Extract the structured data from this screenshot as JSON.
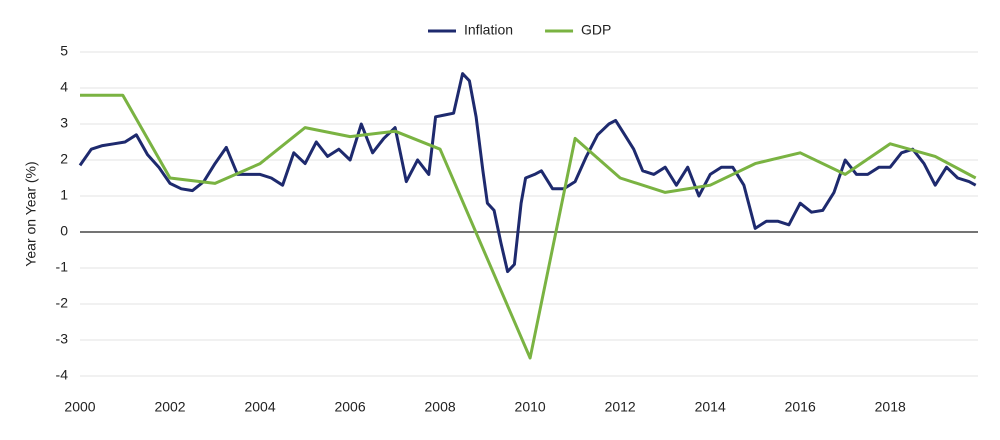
{
  "chart_data": {
    "type": "line",
    "y_label": "Year on Year (%)",
    "xlim": [
      2000,
      2019.95
    ],
    "xticks": [
      2000,
      2002,
      2004,
      2006,
      2008,
      2010,
      2012,
      2014,
      2016,
      2018
    ],
    "ylim": [
      -4,
      5
    ],
    "yticks": [
      -4,
      -3,
      -2,
      -1,
      0,
      1,
      2,
      3,
      4,
      5
    ],
    "grid": true,
    "legend": "top",
    "series": [
      {
        "name": "Inflation",
        "color": "#1e2a6e",
        "x": [
          2000,
          2000.25,
          2000.5,
          2000.75,
          2001,
          2001.25,
          2001.5,
          2001.75,
          2002,
          2002.25,
          2002.5,
          2002.75,
          2003,
          2003.25,
          2003.5,
          2003.75,
          2004,
          2004.25,
          2004.5,
          2004.75,
          2005,
          2005.25,
          2005.5,
          2005.75,
          2006,
          2006.25,
          2006.5,
          2006.75,
          2007,
          2007.25,
          2007.5,
          2007.75,
          2007.9,
          2008.1,
          2008.3,
          2008.5,
          2008.65,
          2008.8,
          2008.95,
          2009.05,
          2009.2,
          2009.35,
          2009.5,
          2009.65,
          2009.8,
          2009.9,
          2010.1,
          2010.25,
          2010.5,
          2010.75,
          2011,
          2011.25,
          2011.5,
          2011.75,
          2011.9,
          2012.1,
          2012.3,
          2012.5,
          2012.75,
          2013,
          2013.25,
          2013.5,
          2013.75,
          2014,
          2014.25,
          2014.5,
          2014.75,
          2015,
          2015.25,
          2015.5,
          2015.75,
          2016,
          2016.25,
          2016.5,
          2016.75,
          2017,
          2017.25,
          2017.5,
          2017.75,
          2018,
          2018.25,
          2018.5,
          2018.75,
          2019,
          2019.25,
          2019.5,
          2019.75,
          2019.9
        ],
        "values": [
          1.85,
          2.3,
          2.4,
          2.45,
          2.5,
          2.7,
          2.15,
          1.8,
          1.35,
          1.2,
          1.15,
          1.4,
          1.9,
          2.35,
          1.6,
          1.6,
          1.6,
          1.5,
          1.3,
          2.2,
          1.9,
          2.5,
          2.1,
          2.3,
          2.0,
          3.0,
          2.2,
          2.6,
          2.9,
          1.4,
          2.0,
          1.6,
          3.2,
          3.25,
          3.3,
          4.4,
          4.2,
          3.2,
          1.7,
          0.8,
          0.6,
          -0.3,
          -1.1,
          -0.9,
          0.8,
          1.5,
          1.6,
          1.7,
          1.2,
          1.2,
          1.4,
          2.1,
          2.7,
          3.0,
          3.1,
          2.7,
          2.3,
          1.7,
          1.6,
          1.8,
          1.3,
          1.8,
          1.0,
          1.6,
          1.8,
          1.8,
          1.3,
          0.1,
          0.3,
          0.3,
          0.2,
          0.8,
          0.55,
          0.6,
          1.1,
          2.0,
          1.6,
          1.6,
          1.8,
          1.8,
          2.2,
          2.3,
          1.9,
          1.3,
          1.8,
          1.5,
          1.4,
          1.3
        ]
      },
      {
        "name": "GDP",
        "color": "#7ab342",
        "x": [
          2000,
          2000.95,
          2002,
          2003,
          2004,
          2005,
          2006,
          2007,
          2008,
          2010,
          2011,
          2012,
          2013,
          2014,
          2015,
          2016,
          2017,
          2018,
          2019,
          2019.9
        ],
        "values": [
          3.8,
          3.8,
          1.5,
          1.35,
          1.9,
          2.9,
          2.65,
          2.8,
          2.3,
          -3.5,
          2.6,
          1.5,
          1.1,
          1.3,
          1.9,
          2.2,
          1.6,
          2.45,
          2.1,
          1.5
        ]
      }
    ]
  }
}
